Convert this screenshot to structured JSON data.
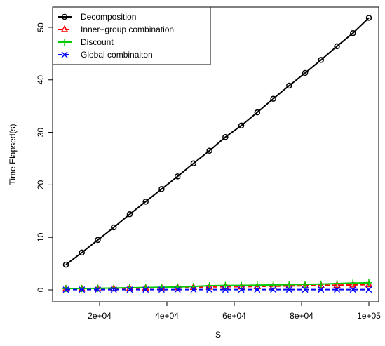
{
  "chart_data": {
    "type": "line",
    "xlabel": "S",
    "ylabel": "Time Elapsed(s)",
    "xlim": [
      10000,
      100000
    ],
    "ylim": [
      0,
      52
    ],
    "x_ticks": [
      20000,
      40000,
      60000,
      80000,
      100000
    ],
    "x_tick_labels": [
      "2e+04",
      "4e+04",
      "6e+04",
      "8e+04",
      "1e+05"
    ],
    "y_ticks": [
      0,
      10,
      20,
      30,
      40,
      50
    ],
    "y_tick_labels": [
      "0",
      "10",
      "20",
      "30",
      "40",
      "50"
    ],
    "grid": false,
    "legend_position": "top-left",
    "x": [
      10000,
      14737,
      19474,
      24211,
      28947,
      33684,
      38421,
      43158,
      47895,
      52632,
      57368,
      62105,
      66842,
      71579,
      76316,
      81053,
      85789,
      90526,
      95263,
      100000
    ],
    "series": [
      {
        "name": "Decomposition",
        "color": "#000000",
        "marker": "circle",
        "line": "solid",
        "values": [
          4.8,
          7.1,
          9.5,
          11.9,
          14.4,
          16.8,
          19.2,
          21.6,
          24.1,
          26.5,
          29.1,
          31.3,
          33.8,
          36.4,
          38.9,
          41.3,
          43.8,
          46.4,
          48.9,
          51.8
        ]
      },
      {
        "name": "Inner−group combination",
        "color": "#ff0000",
        "marker": "triangle",
        "line": "dashed",
        "values": [
          0.2,
          0.2,
          0.25,
          0.25,
          0.3,
          0.35,
          0.4,
          0.45,
          0.5,
          0.55,
          0.6,
          0.6,
          0.65,
          0.7,
          0.75,
          0.8,
          0.85,
          0.9,
          0.95,
          1.0
        ]
      },
      {
        "name": "Discount",
        "color": "#00cc00",
        "marker": "plus",
        "line": "solid",
        "values": [
          0.25,
          0.25,
          0.3,
          0.35,
          0.4,
          0.45,
          0.5,
          0.55,
          0.65,
          0.8,
          0.85,
          0.85,
          0.9,
          0.95,
          1.0,
          1.05,
          1.1,
          1.2,
          1.3,
          1.35
        ]
      },
      {
        "name": "Global combinaiton",
        "color": "#0000ff",
        "marker": "x",
        "line": "dashed",
        "values": [
          0.05,
          0.05,
          0.05,
          0.05,
          0.05,
          0.05,
          0.05,
          0.05,
          0.05,
          0.05,
          0.05,
          0.05,
          0.05,
          0.05,
          0.05,
          0.05,
          0.05,
          0.05,
          0.05,
          0.05
        ]
      }
    ]
  }
}
